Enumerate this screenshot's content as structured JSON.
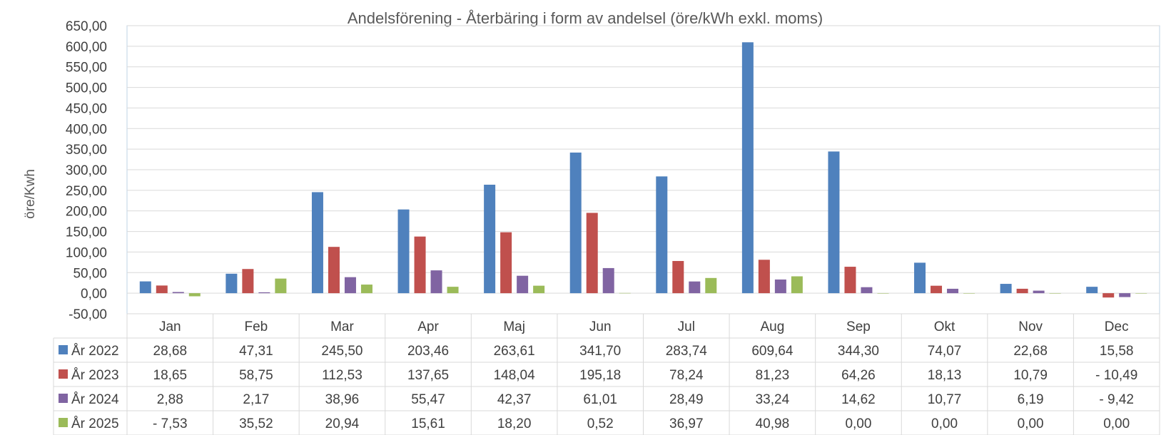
{
  "chart_data": {
    "type": "bar",
    "title": "Andelsförening - Återbäring i form av andelsel (öre/kWh exkl. moms)",
    "ylabel": "öre/Kwh",
    "xlabel": "",
    "ylim": [
      -50,
      650
    ],
    "ytick_step": 50,
    "ytick_labels": [
      "-50,00",
      "0,00",
      "50,00",
      "100,00",
      "150,00",
      "200,00",
      "250,00",
      "300,00",
      "350,00",
      "400,00",
      "450,00",
      "500,00",
      "550,00",
      "600,00",
      "650,00"
    ],
    "negative_tick_color": "#C00000",
    "grid": true,
    "legend_placement": "data table",
    "categories": [
      "Jan",
      "Feb",
      "Mar",
      "Apr",
      "Maj",
      "Jun",
      "Jul",
      "Aug",
      "Sep",
      "Okt",
      "Nov",
      "Dec"
    ],
    "series": [
      {
        "name": "År 2022",
        "color": "#4F81BD",
        "values": [
          28.68,
          47.31,
          245.5,
          203.46,
          263.61,
          341.7,
          283.74,
          609.64,
          344.3,
          74.07,
          22.68,
          15.58
        ],
        "labels": [
          "28,68",
          "47,31",
          "245,50",
          "203,46",
          "263,61",
          "341,70",
          "283,74",
          "609,64",
          "344,30",
          "74,07",
          "22,68",
          "15,58"
        ]
      },
      {
        "name": "År 2023",
        "color": "#C0504D",
        "values": [
          18.65,
          58.75,
          112.53,
          137.65,
          148.04,
          195.18,
          78.24,
          81.23,
          64.26,
          18.13,
          10.79,
          -10.49
        ],
        "labels": [
          "18,65",
          "58,75",
          "112,53",
          "137,65",
          "148,04",
          "195,18",
          "78,24",
          "81,23",
          "64,26",
          "18,13",
          "10,79",
          "- 10,49"
        ]
      },
      {
        "name": "År 2024",
        "color": "#8064A2",
        "values": [
          2.88,
          2.17,
          38.96,
          55.47,
          42.37,
          61.01,
          28.49,
          33.24,
          14.62,
          10.77,
          6.19,
          -9.42
        ],
        "labels": [
          "2,88",
          "2,17",
          "38,96",
          "55,47",
          "42,37",
          "61,01",
          "28,49",
          "33,24",
          "14,62",
          "10,77",
          "6,19",
          "- 9,42"
        ]
      },
      {
        "name": "År 2025",
        "color": "#9BBB59",
        "values": [
          -7.53,
          35.52,
          20.94,
          15.61,
          18.2,
          0.52,
          36.97,
          40.98,
          0.0,
          0.0,
          0.0,
          0.0
        ],
        "labels": [
          "- 7,53",
          "35,52",
          "20,94",
          "15,61",
          "18,20",
          "0,52",
          "36,97",
          "40,98",
          "0,00",
          "0,00",
          "0,00",
          "0,00"
        ]
      }
    ]
  }
}
